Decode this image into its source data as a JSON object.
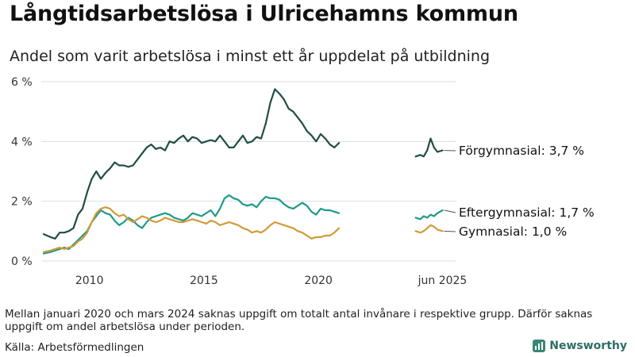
{
  "title": "Långtidsarbetslösa i Ulricehamns kommun",
  "subtitle": "Andel som varit arbetslösa i minst ett år uppdelat på utbildning",
  "footnote": "Mellan januari 2020 och mars 2024 saknas uppgift om totalt antal invånare i respektive grupp. Därför saknas uppgift om andel arbetslösa under perioden.",
  "source": "Källa: Arbetsförmedlingen",
  "brand": {
    "name": "Newsworthy",
    "icon": "newsworthy-logo-icon"
  },
  "chart_data": {
    "type": "line",
    "title": "Långtidsarbetslösa i Ulricehamns kommun",
    "subtitle": "Andel som varit arbetslösa i minst ett år uppdelat på utbildning",
    "xlabel": "",
    "ylabel": "",
    "unit": "%",
    "xlim": [
      2008.0,
      2025.75
    ],
    "ylim": [
      0,
      6
    ],
    "grid": "horizontal",
    "legend": "end-of-line labels (right)",
    "y_ticks": [
      {
        "value": 0,
        "label": "0 %"
      },
      {
        "value": 2,
        "label": "2 %"
      },
      {
        "value": 4,
        "label": "4 %"
      },
      {
        "value": 6,
        "label": "6 %"
      }
    ],
    "x_ticks": [
      {
        "value": 2010,
        "label": "2010"
      },
      {
        "value": 2015,
        "label": "2015"
      },
      {
        "value": 2020,
        "label": "2020"
      },
      {
        "value": 2025.42,
        "label": "jun 2025"
      }
    ],
    "series": [
      {
        "name": "Förgymnasial",
        "end_label": "Förgymnasial: 3,7 %",
        "color": "#1f4e45",
        "segments": [
          [
            [
              2008.0,
              0.9
            ],
            [
              2008.3,
              0.8
            ],
            [
              2008.5,
              0.75
            ],
            [
              2008.7,
              0.95
            ],
            [
              2008.9,
              0.95
            ],
            [
              2009.1,
              1.0
            ],
            [
              2009.3,
              1.1
            ],
            [
              2009.5,
              1.55
            ],
            [
              2009.7,
              1.75
            ],
            [
              2009.9,
              2.3
            ],
            [
              2010.1,
              2.75
            ],
            [
              2010.3,
              3.0
            ],
            [
              2010.5,
              2.75
            ],
            [
              2010.7,
              2.95
            ],
            [
              2010.9,
              3.1
            ],
            [
              2011.1,
              3.3
            ],
            [
              2011.3,
              3.2
            ],
            [
              2011.5,
              3.2
            ],
            [
              2011.7,
              3.15
            ],
            [
              2011.9,
              3.2
            ],
            [
              2012.1,
              3.4
            ],
            [
              2012.3,
              3.6
            ],
            [
              2012.5,
              3.8
            ],
            [
              2012.7,
              3.9
            ],
            [
              2012.9,
              3.75
            ],
            [
              2013.1,
              3.8
            ],
            [
              2013.3,
              3.7
            ],
            [
              2013.5,
              4.0
            ],
            [
              2013.7,
              3.95
            ],
            [
              2013.9,
              4.1
            ],
            [
              2014.1,
              4.2
            ],
            [
              2014.3,
              4.0
            ],
            [
              2014.5,
              4.15
            ],
            [
              2014.7,
              4.1
            ],
            [
              2014.9,
              3.95
            ],
            [
              2015.1,
              4.0
            ],
            [
              2015.3,
              4.05
            ],
            [
              2015.5,
              4.0
            ],
            [
              2015.7,
              4.2
            ],
            [
              2015.9,
              4.0
            ],
            [
              2016.1,
              3.8
            ],
            [
              2016.3,
              3.8
            ],
            [
              2016.5,
              4.0
            ],
            [
              2016.7,
              4.2
            ],
            [
              2016.9,
              3.95
            ],
            [
              2017.1,
              4.0
            ],
            [
              2017.3,
              4.15
            ],
            [
              2017.5,
              4.1
            ],
            [
              2017.7,
              4.6
            ],
            [
              2017.9,
              5.3
            ],
            [
              2018.1,
              5.75
            ],
            [
              2018.3,
              5.6
            ],
            [
              2018.5,
              5.4
            ],
            [
              2018.7,
              5.1
            ],
            [
              2018.9,
              5.0
            ],
            [
              2019.1,
              4.8
            ],
            [
              2019.3,
              4.6
            ],
            [
              2019.5,
              4.35
            ],
            [
              2019.7,
              4.2
            ],
            [
              2019.9,
              4.0
            ],
            [
              2020.1,
              4.25
            ],
            [
              2020.3,
              4.1
            ],
            [
              2020.5,
              3.9
            ],
            [
              2020.7,
              3.8
            ],
            [
              2020.9,
              3.95
            ]
          ],
          [
            [
              2024.25,
              3.5
            ],
            [
              2024.45,
              3.55
            ],
            [
              2024.6,
              3.5
            ],
            [
              2024.75,
              3.7
            ],
            [
              2024.9,
              4.1
            ],
            [
              2025.05,
              3.8
            ],
            [
              2025.2,
              3.65
            ],
            [
              2025.42,
              3.7
            ]
          ]
        ]
      },
      {
        "name": "Eftergymnasial",
        "end_label": "Eftergymnasial: 1,7 %",
        "color": "#1e9a8a",
        "segments": [
          [
            [
              2008.0,
              0.25
            ],
            [
              2008.3,
              0.3
            ],
            [
              2008.5,
              0.35
            ],
            [
              2008.7,
              0.4
            ],
            [
              2008.9,
              0.45
            ],
            [
              2009.1,
              0.4
            ],
            [
              2009.3,
              0.55
            ],
            [
              2009.5,
              0.7
            ],
            [
              2009.7,
              0.85
            ],
            [
              2009.9,
              1.0
            ],
            [
              2010.1,
              1.3
            ],
            [
              2010.3,
              1.5
            ],
            [
              2010.5,
              1.7
            ],
            [
              2010.7,
              1.6
            ],
            [
              2010.9,
              1.55
            ],
            [
              2011.1,
              1.35
            ],
            [
              2011.3,
              1.2
            ],
            [
              2011.5,
              1.3
            ],
            [
              2011.7,
              1.45
            ],
            [
              2011.9,
              1.35
            ],
            [
              2012.1,
              1.2
            ],
            [
              2012.3,
              1.1
            ],
            [
              2012.5,
              1.3
            ],
            [
              2012.7,
              1.45
            ],
            [
              2012.9,
              1.5
            ],
            [
              2013.1,
              1.55
            ],
            [
              2013.3,
              1.6
            ],
            [
              2013.5,
              1.55
            ],
            [
              2013.7,
              1.45
            ],
            [
              2013.9,
              1.4
            ],
            [
              2014.1,
              1.35
            ],
            [
              2014.3,
              1.45
            ],
            [
              2014.5,
              1.6
            ],
            [
              2014.7,
              1.55
            ],
            [
              2014.9,
              1.5
            ],
            [
              2015.1,
              1.6
            ],
            [
              2015.3,
              1.7
            ],
            [
              2015.5,
              1.5
            ],
            [
              2015.7,
              1.75
            ],
            [
              2015.9,
              2.1
            ],
            [
              2016.1,
              2.2
            ],
            [
              2016.3,
              2.1
            ],
            [
              2016.5,
              2.05
            ],
            [
              2016.7,
              1.9
            ],
            [
              2016.9,
              1.85
            ],
            [
              2017.1,
              1.9
            ],
            [
              2017.3,
              1.8
            ],
            [
              2017.5,
              2.0
            ],
            [
              2017.7,
              2.15
            ],
            [
              2017.9,
              2.1
            ],
            [
              2018.1,
              2.1
            ],
            [
              2018.3,
              2.05
            ],
            [
              2018.5,
              1.9
            ],
            [
              2018.7,
              1.8
            ],
            [
              2018.9,
              1.75
            ],
            [
              2019.1,
              1.85
            ],
            [
              2019.3,
              1.95
            ],
            [
              2019.5,
              1.85
            ],
            [
              2019.7,
              1.65
            ],
            [
              2019.9,
              1.55
            ],
            [
              2020.1,
              1.75
            ],
            [
              2020.3,
              1.7
            ],
            [
              2020.5,
              1.7
            ],
            [
              2020.7,
              1.65
            ],
            [
              2020.9,
              1.6
            ]
          ],
          [
            [
              2024.25,
              1.45
            ],
            [
              2024.45,
              1.4
            ],
            [
              2024.6,
              1.5
            ],
            [
              2024.75,
              1.45
            ],
            [
              2024.9,
              1.55
            ],
            [
              2025.05,
              1.5
            ],
            [
              2025.2,
              1.6
            ],
            [
              2025.42,
              1.7
            ]
          ]
        ]
      },
      {
        "name": "Gymnasial",
        "end_label": "Gymnasial: 1,0 %",
        "color": "#d19b3a",
        "segments": [
          [
            [
              2008.0,
              0.3
            ],
            [
              2008.3,
              0.35
            ],
            [
              2008.5,
              0.4
            ],
            [
              2008.7,
              0.45
            ],
            [
              2008.9,
              0.4
            ],
            [
              2009.1,
              0.45
            ],
            [
              2009.3,
              0.5
            ],
            [
              2009.5,
              0.65
            ],
            [
              2009.7,
              0.75
            ],
            [
              2009.9,
              0.95
            ],
            [
              2010.1,
              1.3
            ],
            [
              2010.3,
              1.6
            ],
            [
              2010.5,
              1.75
            ],
            [
              2010.7,
              1.8
            ],
            [
              2010.9,
              1.75
            ],
            [
              2011.1,
              1.6
            ],
            [
              2011.3,
              1.5
            ],
            [
              2011.5,
              1.55
            ],
            [
              2011.7,
              1.4
            ],
            [
              2011.9,
              1.3
            ],
            [
              2012.1,
              1.4
            ],
            [
              2012.3,
              1.5
            ],
            [
              2012.5,
              1.45
            ],
            [
              2012.7,
              1.35
            ],
            [
              2012.9,
              1.3
            ],
            [
              2013.1,
              1.35
            ],
            [
              2013.3,
              1.45
            ],
            [
              2013.5,
              1.4
            ],
            [
              2013.7,
              1.35
            ],
            [
              2013.9,
              1.3
            ],
            [
              2014.1,
              1.3
            ],
            [
              2014.3,
              1.35
            ],
            [
              2014.5,
              1.4
            ],
            [
              2014.7,
              1.35
            ],
            [
              2014.9,
              1.3
            ],
            [
              2015.1,
              1.25
            ],
            [
              2015.3,
              1.35
            ],
            [
              2015.5,
              1.3
            ],
            [
              2015.7,
              1.2
            ],
            [
              2015.9,
              1.25
            ],
            [
              2016.1,
              1.3
            ],
            [
              2016.3,
              1.25
            ],
            [
              2016.5,
              1.2
            ],
            [
              2016.7,
              1.1
            ],
            [
              2016.9,
              1.05
            ],
            [
              2017.1,
              0.95
            ],
            [
              2017.3,
              1.0
            ],
            [
              2017.5,
              0.95
            ],
            [
              2017.7,
              1.05
            ],
            [
              2017.9,
              1.2
            ],
            [
              2018.1,
              1.3
            ],
            [
              2018.3,
              1.25
            ],
            [
              2018.5,
              1.2
            ],
            [
              2018.7,
              1.15
            ],
            [
              2018.9,
              1.1
            ],
            [
              2019.1,
              1.0
            ],
            [
              2019.3,
              0.95
            ],
            [
              2019.5,
              0.85
            ],
            [
              2019.7,
              0.75
            ],
            [
              2019.9,
              0.8
            ],
            [
              2020.1,
              0.8
            ],
            [
              2020.3,
              0.85
            ],
            [
              2020.5,
              0.85
            ],
            [
              2020.7,
              0.95
            ],
            [
              2020.9,
              1.1
            ]
          ],
          [
            [
              2024.25,
              1.0
            ],
            [
              2024.45,
              0.95
            ],
            [
              2024.6,
              1.0
            ],
            [
              2024.75,
              1.1
            ],
            [
              2024.9,
              1.2
            ],
            [
              2025.05,
              1.15
            ],
            [
              2025.2,
              1.05
            ],
            [
              2025.42,
              1.0
            ]
          ]
        ]
      }
    ]
  }
}
